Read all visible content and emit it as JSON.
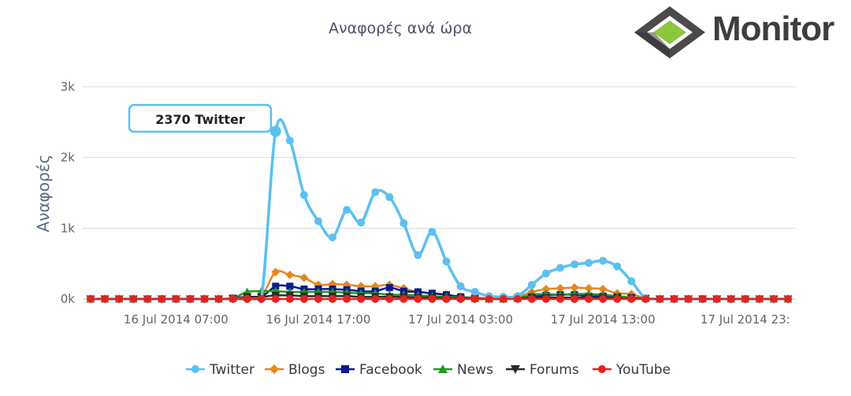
{
  "brand": {
    "name": "Monitor",
    "colors": {
      "diamond_outer": "#4a4a4c",
      "diamond_inner": "#8cc63f"
    }
  },
  "tooltip": {
    "text": "2370 Twitter"
  },
  "chart_data": {
    "type": "line",
    "title": "Αναφορές ανά ώρα",
    "xlabel": "",
    "ylabel": "Αναφορές",
    "ylim": [
      0,
      3000
    ],
    "yticks": [
      0,
      1000,
      2000,
      3000
    ],
    "ytick_labels": [
      "0k",
      "1k",
      "2k",
      "3k"
    ],
    "x_start": "16 Jul 2014 01:00",
    "x_step_hours": 1,
    "xticks": [
      6,
      16,
      26,
      36,
      46
    ],
    "xtick_labels": [
      "16 Jul 2014 07:00",
      "16 Jul 2014 17:00",
      "17 Jul 2014 03:00",
      "17 Jul 2014 13:00",
      "17 Jul 2014 23:"
    ],
    "grid": true,
    "legend_position": "bottom",
    "series": [
      {
        "name": "Twitter",
        "color": "#5bc0f0",
        "marker": "circle",
        "values": [
          0,
          0,
          0,
          0,
          0,
          0,
          0,
          0,
          0,
          0,
          0,
          0,
          0,
          2370,
          2240,
          1470,
          1100,
          870,
          1260,
          1080,
          1510,
          1440,
          1070,
          620,
          950,
          530,
          180,
          100,
          40,
          30,
          40,
          200,
          360,
          440,
          490,
          510,
          540,
          460,
          250,
          10,
          0,
          0,
          0,
          0,
          0,
          0,
          0,
          0,
          0,
          0
        ]
      },
      {
        "name": "Blogs",
        "color": "#e6861e",
        "marker": "diamond",
        "values": [
          0,
          0,
          0,
          0,
          0,
          0,
          0,
          0,
          0,
          0,
          10,
          20,
          40,
          380,
          340,
          300,
          200,
          210,
          200,
          180,
          180,
          200,
          150,
          100,
          80,
          60,
          30,
          20,
          10,
          10,
          30,
          100,
          140,
          150,
          160,
          150,
          140,
          80,
          70,
          10,
          0,
          0,
          0,
          0,
          0,
          0,
          0,
          0,
          0,
          0
        ]
      },
      {
        "name": "Facebook",
        "color": "#0c1a8c",
        "marker": "square",
        "values": [
          0,
          0,
          0,
          0,
          0,
          0,
          0,
          0,
          0,
          0,
          10,
          20,
          30,
          180,
          180,
          140,
          140,
          140,
          130,
          110,
          110,
          160,
          110,
          100,
          80,
          60,
          30,
          10,
          0,
          0,
          10,
          30,
          50,
          60,
          60,
          40,
          40,
          30,
          20,
          10,
          0,
          0,
          0,
          0,
          0,
          0,
          0,
          0,
          0,
          0
        ]
      },
      {
        "name": "News",
        "color": "#1f9a1f",
        "marker": "triangle",
        "values": [
          0,
          0,
          0,
          0,
          0,
          0,
          0,
          0,
          0,
          0,
          10,
          100,
          110,
          110,
          100,
          100,
          100,
          100,
          90,
          80,
          80,
          60,
          60,
          50,
          40,
          30,
          20,
          10,
          0,
          0,
          10,
          60,
          70,
          60,
          70,
          70,
          60,
          40,
          20,
          10,
          0,
          0,
          0,
          0,
          0,
          0,
          0,
          0,
          0,
          0
        ]
      },
      {
        "name": "Forums",
        "color": "#2b2b2b",
        "marker": "triangle-down",
        "values": [
          0,
          0,
          0,
          0,
          0,
          0,
          0,
          0,
          0,
          0,
          10,
          30,
          30,
          50,
          50,
          40,
          40,
          40,
          40,
          30,
          30,
          30,
          30,
          20,
          20,
          10,
          10,
          0,
          0,
          0,
          10,
          20,
          20,
          20,
          20,
          20,
          20,
          10,
          10,
          0,
          0,
          0,
          0,
          0,
          0,
          0,
          0,
          0,
          0,
          0
        ]
      },
      {
        "name": "YouTube",
        "color": "#e52222",
        "marker": "circle",
        "values": [
          0,
          0,
          0,
          0,
          0,
          0,
          0,
          0,
          0,
          0,
          0,
          0,
          0,
          0,
          0,
          0,
          0,
          0,
          0,
          0,
          0,
          0,
          0,
          0,
          0,
          0,
          0,
          0,
          0,
          0,
          0,
          0,
          0,
          0,
          0,
          0,
          0,
          0,
          0,
          0,
          0,
          0,
          0,
          0,
          0,
          0,
          0,
          0,
          0,
          0
        ]
      }
    ]
  }
}
